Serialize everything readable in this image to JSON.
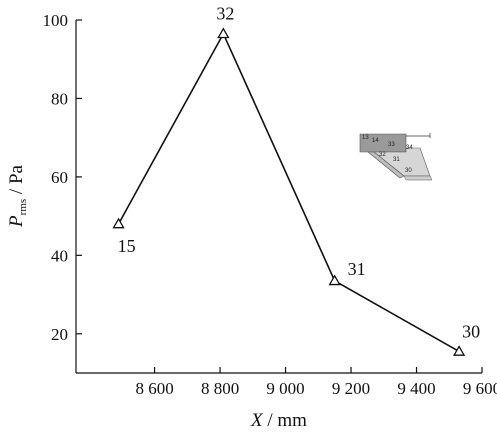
{
  "chart_data": {
    "type": "line",
    "x": [
      8490,
      8810,
      9150,
      9530
    ],
    "y": [
      48,
      96.5,
      33.5,
      15.5
    ],
    "point_labels": [
      "15",
      "32",
      "31",
      "30"
    ],
    "xlim": [
      8360,
      9600
    ],
    "ylim": [
      10,
      100
    ],
    "xticks": [
      8600,
      8800,
      9000,
      9200,
      9400,
      9600
    ],
    "xtick_labels": [
      "8 600",
      "8 800",
      "9 000",
      "9 200",
      "9 400",
      "9 600"
    ],
    "yticks": [
      20,
      40,
      60,
      80,
      100
    ],
    "ytick_labels": [
      "20",
      "40",
      "60",
      "80",
      "100"
    ],
    "xlabel_var": "X",
    "xlabel_unit": " / mm",
    "ylabel_var": "P",
    "ylabel_sub": "rms",
    "ylabel_unit": " / Pa",
    "grid": false,
    "marker": "triangle",
    "inset_labels": [
      "13",
      "14",
      "33",
      "34",
      "32",
      "31",
      "30"
    ]
  }
}
